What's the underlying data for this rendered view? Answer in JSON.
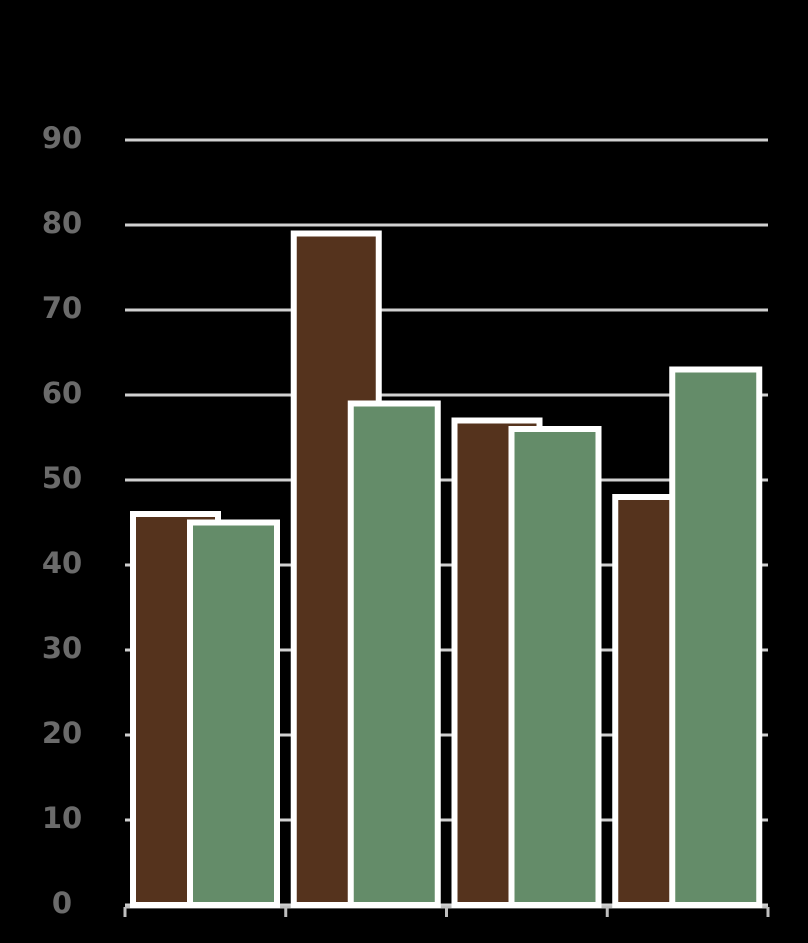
{
  "chart_data": {
    "type": "bar",
    "categories": [
      null,
      null,
      null,
      null
    ],
    "series": [
      {
        "color": "#55331d",
        "values": [
          46,
          79,
          57,
          48
        ]
      },
      {
        "color": "#648c69",
        "values": [
          45,
          59,
          56,
          63
        ]
      }
    ],
    "ylim": [
      0,
      90
    ],
    "yticks": [
      0,
      10,
      20,
      30,
      40,
      50,
      60,
      70,
      80,
      90
    ],
    "grid": true
  }
}
